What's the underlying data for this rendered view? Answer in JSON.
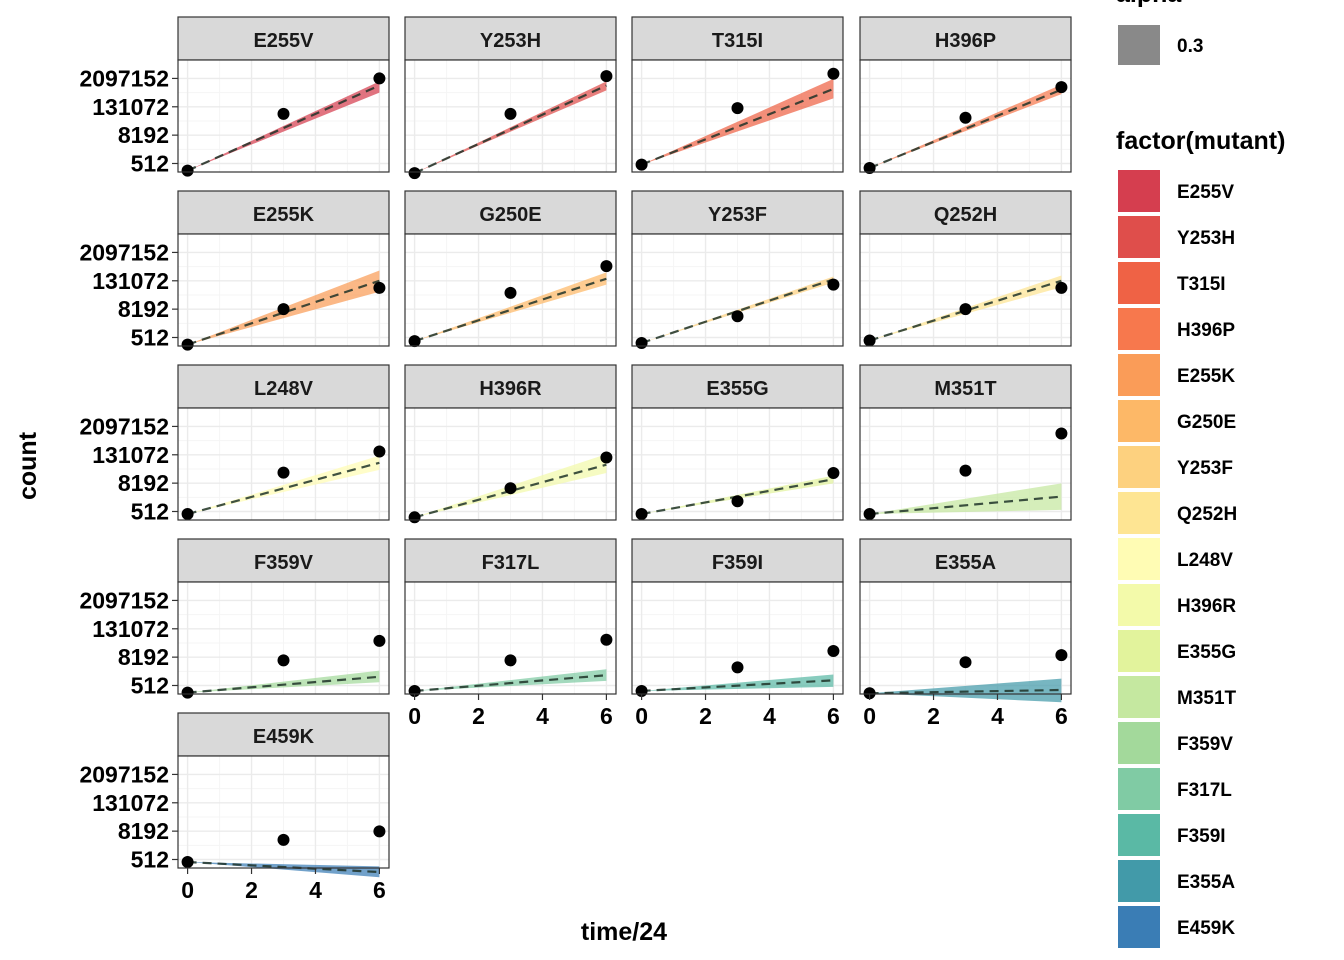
{
  "chart_data": {
    "type": "scatter",
    "facet_by": "mutant",
    "xlabel": "time/24",
    "ylabel": "count",
    "x_ticks": [
      0,
      2,
      4,
      6
    ],
    "xlim": [
      -0.3,
      6.3
    ],
    "y_scale": "log2",
    "y_ticks": [
      512,
      8192,
      131072,
      2097152
    ],
    "y_tick_labels": [
      "512",
      "8192",
      "131072",
      "2097152"
    ],
    "ylim_log2": [
      7.8,
      23.6
    ],
    "grid": true,
    "legend_position": "right",
    "legend_alpha": {
      "title": "alpha",
      "value": "0.3"
    },
    "legend_fill_title": "factor(mutant)",
    "panels": [
      {
        "name": "E255V",
        "color": "#d53e4f",
        "points": [
          {
            "x": 0,
            "y": 256
          },
          {
            "x": 3,
            "y": 65536
          },
          {
            "x": 6,
            "y": 2097152
          }
        ],
        "fit": {
          "y0": 256,
          "y6": 1048576,
          "lo6": 524288,
          "hi6": 1572864
        }
      },
      {
        "name": "Y253H",
        "color": "#df4e4b",
        "points": [
          {
            "x": 0,
            "y": 200
          },
          {
            "x": 3,
            "y": 65536
          },
          {
            "x": 6,
            "y": 2621440
          }
        ],
        "fit": {
          "y0": 200,
          "y6": 1048576,
          "lo6": 655360,
          "hi6": 1572864
        }
      },
      {
        "name": "T315I",
        "color": "#ef6245",
        "points": [
          {
            "x": 0,
            "y": 460
          },
          {
            "x": 3,
            "y": 115000
          },
          {
            "x": 6,
            "y": 3300000
          }
        ],
        "fit": {
          "y0": 460,
          "y6": 750000,
          "lo6": 300000,
          "hi6": 2000000
        }
      },
      {
        "name": "H396P",
        "color": "#f7784d",
        "points": [
          {
            "x": 0,
            "y": 330
          },
          {
            "x": 3,
            "y": 45000
          },
          {
            "x": 6,
            "y": 900000
          }
        ],
        "fit": {
          "y0": 330,
          "y6": 700000,
          "lo6": 450000,
          "hi6": 1150000
        }
      },
      {
        "name": "E255K",
        "color": "#fa9c58",
        "points": [
          {
            "x": 0,
            "y": 256
          },
          {
            "x": 3,
            "y": 8192
          },
          {
            "x": 6,
            "y": 65536
          }
        ],
        "fit": {
          "y0": 256,
          "y6": 131072,
          "lo6": 45000,
          "hi6": 360000
        }
      },
      {
        "name": "G250E",
        "color": "#fdb867",
        "points": [
          {
            "x": 0,
            "y": 360
          },
          {
            "x": 3,
            "y": 40000
          },
          {
            "x": 6,
            "y": 550000
          }
        ],
        "fit": {
          "y0": 360,
          "y6": 160000,
          "lo6": 90000,
          "hi6": 300000
        }
      },
      {
        "name": "Y253F",
        "color": "#fdd17f",
        "points": [
          {
            "x": 0,
            "y": 300
          },
          {
            "x": 3,
            "y": 4096
          },
          {
            "x": 6,
            "y": 90000
          }
        ],
        "fit": {
          "y0": 300,
          "y6": 150000,
          "lo6": 110000,
          "hi6": 200000
        }
      },
      {
        "name": "Q252H",
        "color": "#fee593",
        "points": [
          {
            "x": 0,
            "y": 380
          },
          {
            "x": 3,
            "y": 8192
          },
          {
            "x": 6,
            "y": 65536
          }
        ],
        "fit": {
          "y0": 380,
          "y6": 131072,
          "lo6": 70000,
          "hi6": 220000
        }
      },
      {
        "name": "L248V",
        "color": "#fffcb4",
        "points": [
          {
            "x": 0,
            "y": 400
          },
          {
            "x": 3,
            "y": 23000
          },
          {
            "x": 6,
            "y": 180000
          }
        ],
        "fit": {
          "y0": 400,
          "y6": 60000,
          "lo6": 30000,
          "hi6": 120000
        }
      },
      {
        "name": "H396R",
        "color": "#f3faaa",
        "points": [
          {
            "x": 0,
            "y": 290
          },
          {
            "x": 3,
            "y": 5000
          },
          {
            "x": 6,
            "y": 100000
          }
        ],
        "fit": {
          "y0": 290,
          "y6": 50000,
          "lo6": 22000,
          "hi6": 140000
        }
      },
      {
        "name": "E355G",
        "color": "#e2f39c",
        "points": [
          {
            "x": 0,
            "y": 400
          },
          {
            "x": 3,
            "y": 1400
          },
          {
            "x": 6,
            "y": 22000
          }
        ],
        "fit": {
          "y0": 400,
          "y6": 12000,
          "lo6": 8000,
          "hi6": 17000
        }
      },
      {
        "name": "M351T",
        "color": "#c5e8a0",
        "points": [
          {
            "x": 0,
            "y": 400
          },
          {
            "x": 3,
            "y": 28000
          },
          {
            "x": 6,
            "y": 1048576
          }
        ],
        "fit": {
          "y0": 400,
          "y6": 2200,
          "lo6": 600,
          "hi6": 8000
        }
      },
      {
        "name": "F359V",
        "color": "#a3d99b",
        "points": [
          {
            "x": 0,
            "y": 256
          },
          {
            "x": 3,
            "y": 6000
          },
          {
            "x": 6,
            "y": 40000
          }
        ],
        "fit": {
          "y0": 256,
          "y6": 1200,
          "lo6": 700,
          "hi6": 2200
        }
      },
      {
        "name": "F317L",
        "color": "#80cba4",
        "points": [
          {
            "x": 0,
            "y": 300
          },
          {
            "x": 3,
            "y": 6000
          },
          {
            "x": 6,
            "y": 45000
          }
        ],
        "fit": {
          "y0": 300,
          "y6": 1400,
          "lo6": 800,
          "hi6": 2500
        }
      },
      {
        "name": "F359I",
        "color": "#5ab9a5",
        "points": [
          {
            "x": 0,
            "y": 300
          },
          {
            "x": 3,
            "y": 3000
          },
          {
            "x": 6,
            "y": 15000
          }
        ],
        "fit": {
          "y0": 300,
          "y6": 850,
          "lo6": 450,
          "hi6": 1500
        }
      },
      {
        "name": "E355A",
        "color": "#429aa9",
        "points": [
          {
            "x": 0,
            "y": 240
          },
          {
            "x": 3,
            "y": 5000
          },
          {
            "x": 6,
            "y": 10000
          }
        ],
        "fit": {
          "y0": 240,
          "y6": 330,
          "lo6": 100,
          "hi6": 1000
        }
      },
      {
        "name": "E459K",
        "color": "#3a7db5",
        "points": [
          {
            "x": 0,
            "y": 400
          },
          {
            "x": 3,
            "y": 3500
          },
          {
            "x": 6,
            "y": 8000
          }
        ],
        "fit": {
          "y0": 400,
          "y6": 150,
          "lo6": 90,
          "hi6": 260
        }
      }
    ],
    "colors": {
      "strip_bg": "#d9d9d9",
      "panel_border": "#333333",
      "grid_major": "#ebebeb",
      "grid_minor": "#f5f5f5",
      "point": "#000000",
      "fit_line": "#1f3328",
      "alpha_key": "#898989"
    }
  }
}
